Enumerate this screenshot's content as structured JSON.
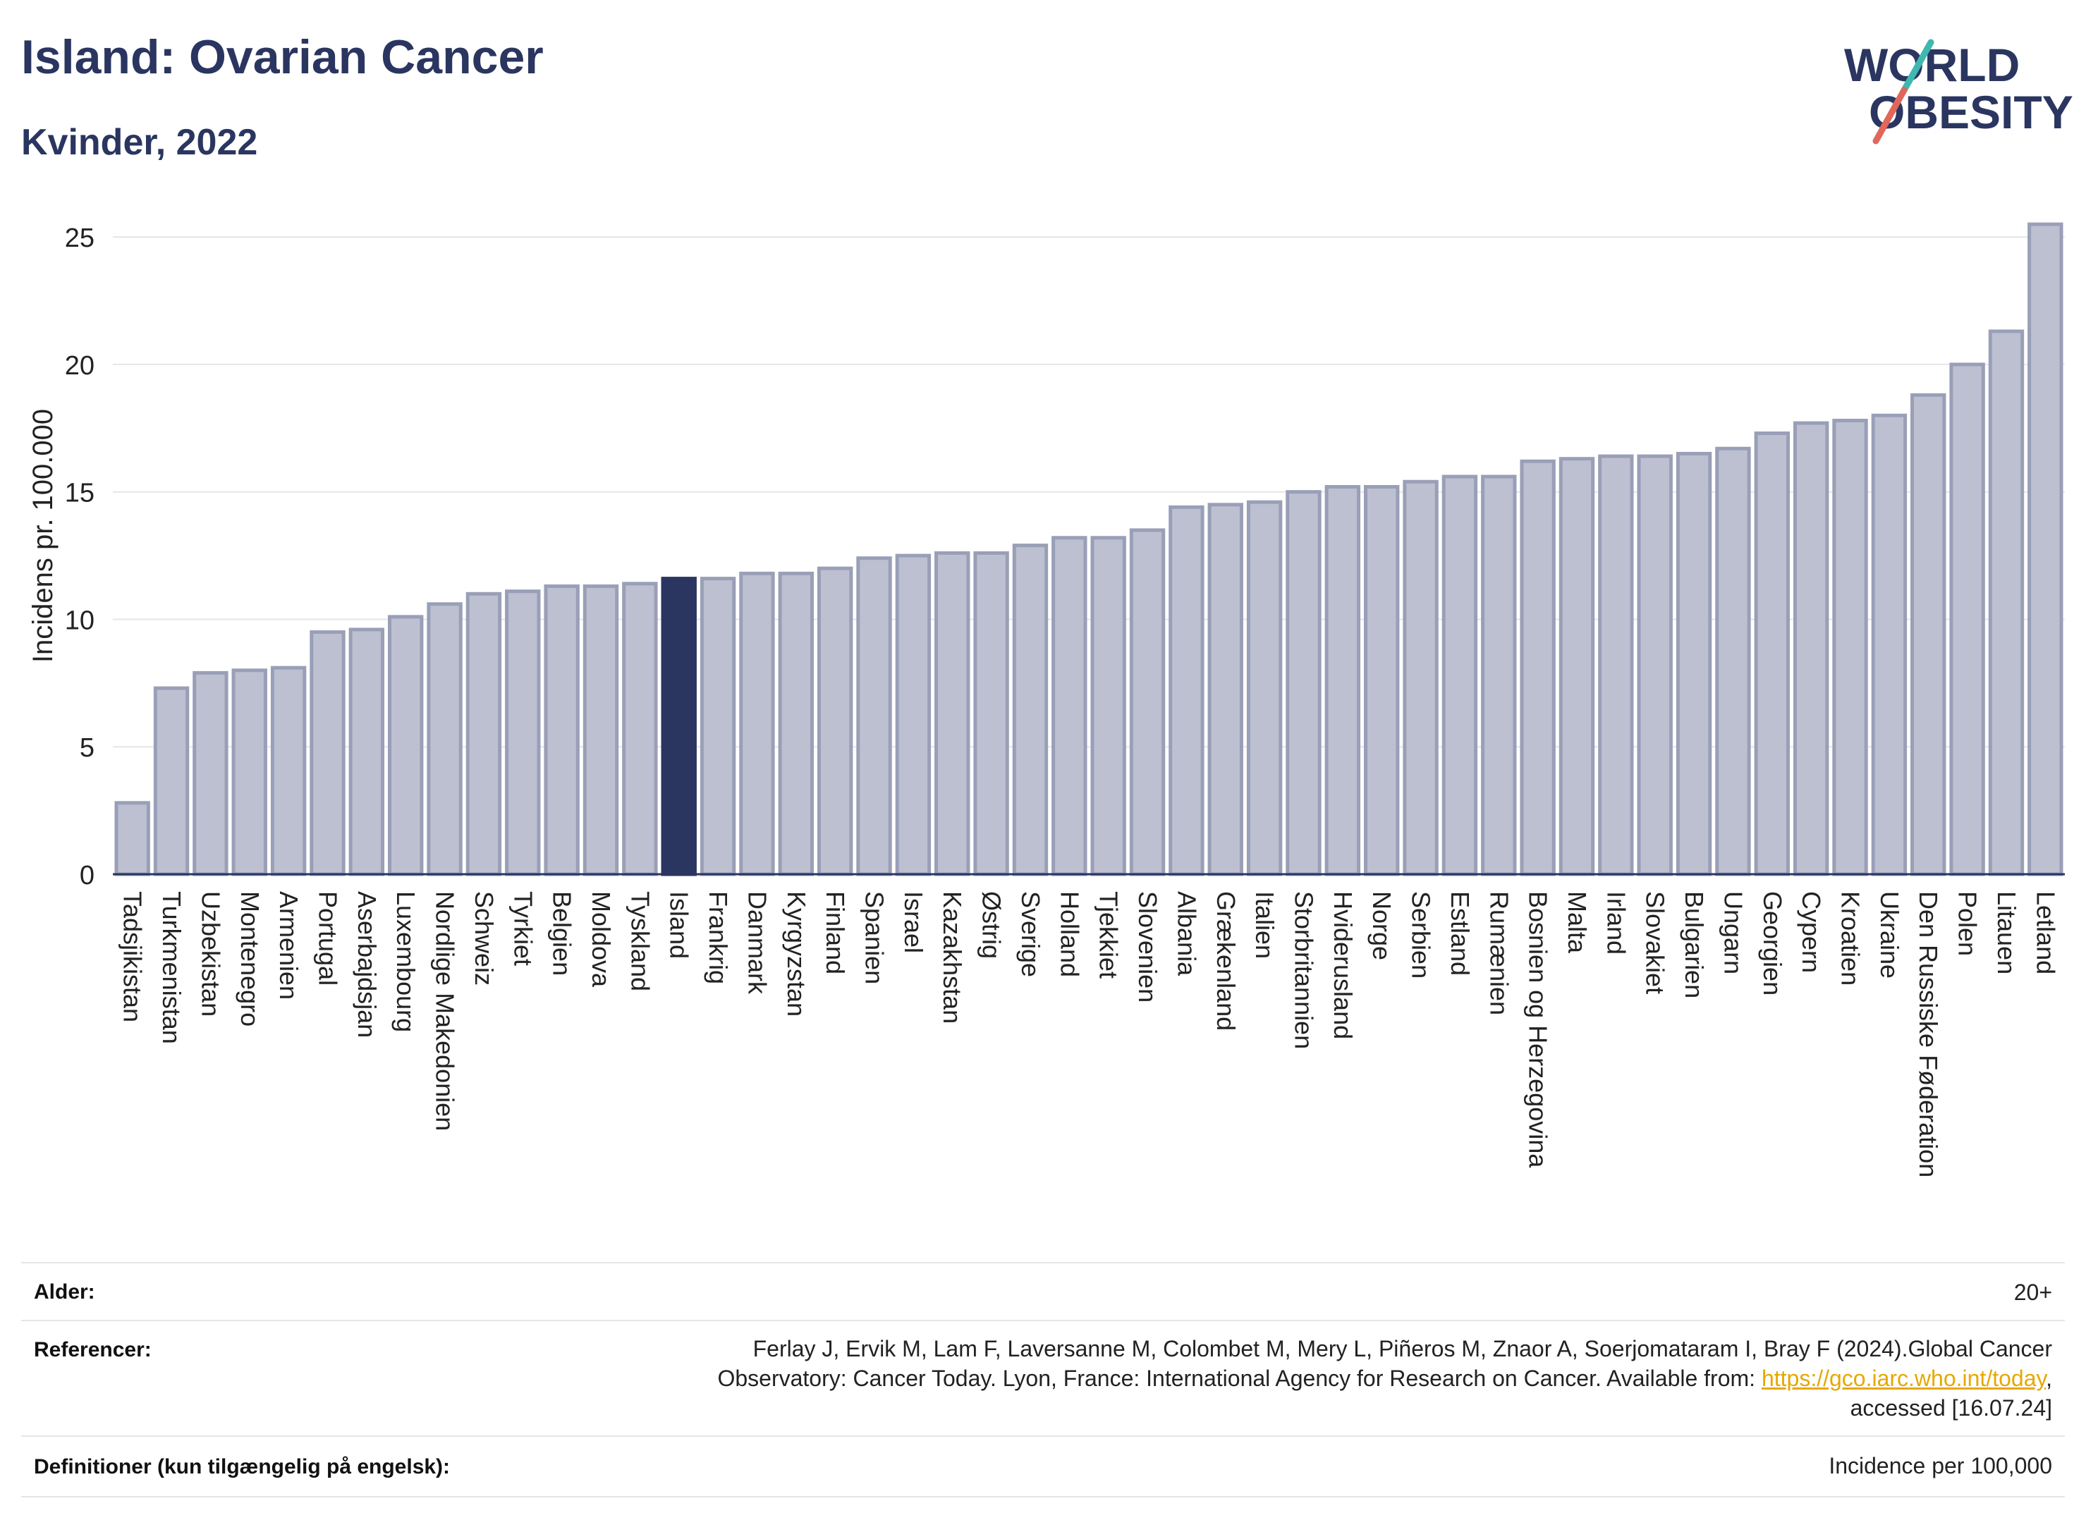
{
  "header": {
    "title": "Island: Ovarian Cancer",
    "subtitle": "Kvinder, 2022"
  },
  "logo": {
    "line1": "WORLD",
    "line2": "OBESITY"
  },
  "colors": {
    "accent": "#2a3560",
    "bar": "#bcc0d0",
    "bar_border": "#9a9fb8",
    "highlight": "#2a3560",
    "link": "#e6a800"
  },
  "chart_data": {
    "type": "bar",
    "ylabel": "Incidens pr. 100.000",
    "ylim": [
      0,
      26
    ],
    "yticks": [
      0,
      5,
      10,
      15,
      20,
      25
    ],
    "grid": true,
    "highlight": "Island",
    "categories": [
      "Tadsjikistan",
      "Turkmenistan",
      "Uzbekistan",
      "Montenegro",
      "Armenien",
      "Portugal",
      "Aserbajdsjan",
      "Luxembourg",
      "Nordlige Makedonien",
      "Schweiz",
      "Tyrkiet",
      "Belgien",
      "Moldova",
      "Tyskland",
      "Island",
      "Frankrig",
      "Danmark",
      "Kyrgyzstan",
      "Finland",
      "Spanien",
      "Israel",
      "Kazakhstan",
      "Østrig",
      "Sverige",
      "Holland",
      "Tjekkiet",
      "Slovenien",
      "Albania",
      "Grækenland",
      "Italien",
      "Storbritannien",
      "Hviderusland",
      "Norge",
      "Serbien",
      "Estland",
      "Rumænien",
      "Bosnien og Herzegovina",
      "Malta",
      "Irland",
      "Slovakiet",
      "Bulgarien",
      "Ungarn",
      "Georgien",
      "Cypern",
      "Kroatien",
      "Ukraine",
      "Den Russiske Føderation",
      "Polen",
      "Litauen",
      "Letland"
    ],
    "values": [
      2.8,
      7.3,
      7.9,
      8.0,
      8.1,
      9.5,
      9.6,
      10.1,
      10.6,
      11.0,
      11.1,
      11.3,
      11.3,
      11.4,
      11.6,
      11.6,
      11.8,
      11.8,
      12.0,
      12.4,
      12.5,
      12.6,
      12.6,
      12.9,
      13.2,
      13.2,
      13.5,
      14.4,
      14.5,
      14.6,
      15.0,
      15.2,
      15.2,
      15.4,
      15.6,
      15.6,
      16.2,
      16.3,
      16.4,
      16.4,
      16.5,
      16.7,
      17.3,
      17.7,
      17.8,
      18.0,
      18.8,
      20.0,
      21.3,
      25.5
    ]
  },
  "footer": {
    "age_label": "Alder:",
    "age_value": "20+",
    "ref_label": "Referencer:",
    "ref_line1": "Ferlay J, Ervik M, Lam F, Laversanne M, Colombet M, Mery L, Piñeros M, Znaor A, Soerjomataram I, Bray F (2024).Global Cancer",
    "ref_line2": "Observatory: Cancer Today. Lyon, France: International Agency for Research on Cancer. Available from:",
    "ref_link": "https://gco.iarc.who.int/today",
    "ref_line3": "accessed [16.07.24]",
    "def_label": "Definitioner (kun tilgængelig på engelsk):",
    "def_value": "Incidence per 100,000"
  }
}
